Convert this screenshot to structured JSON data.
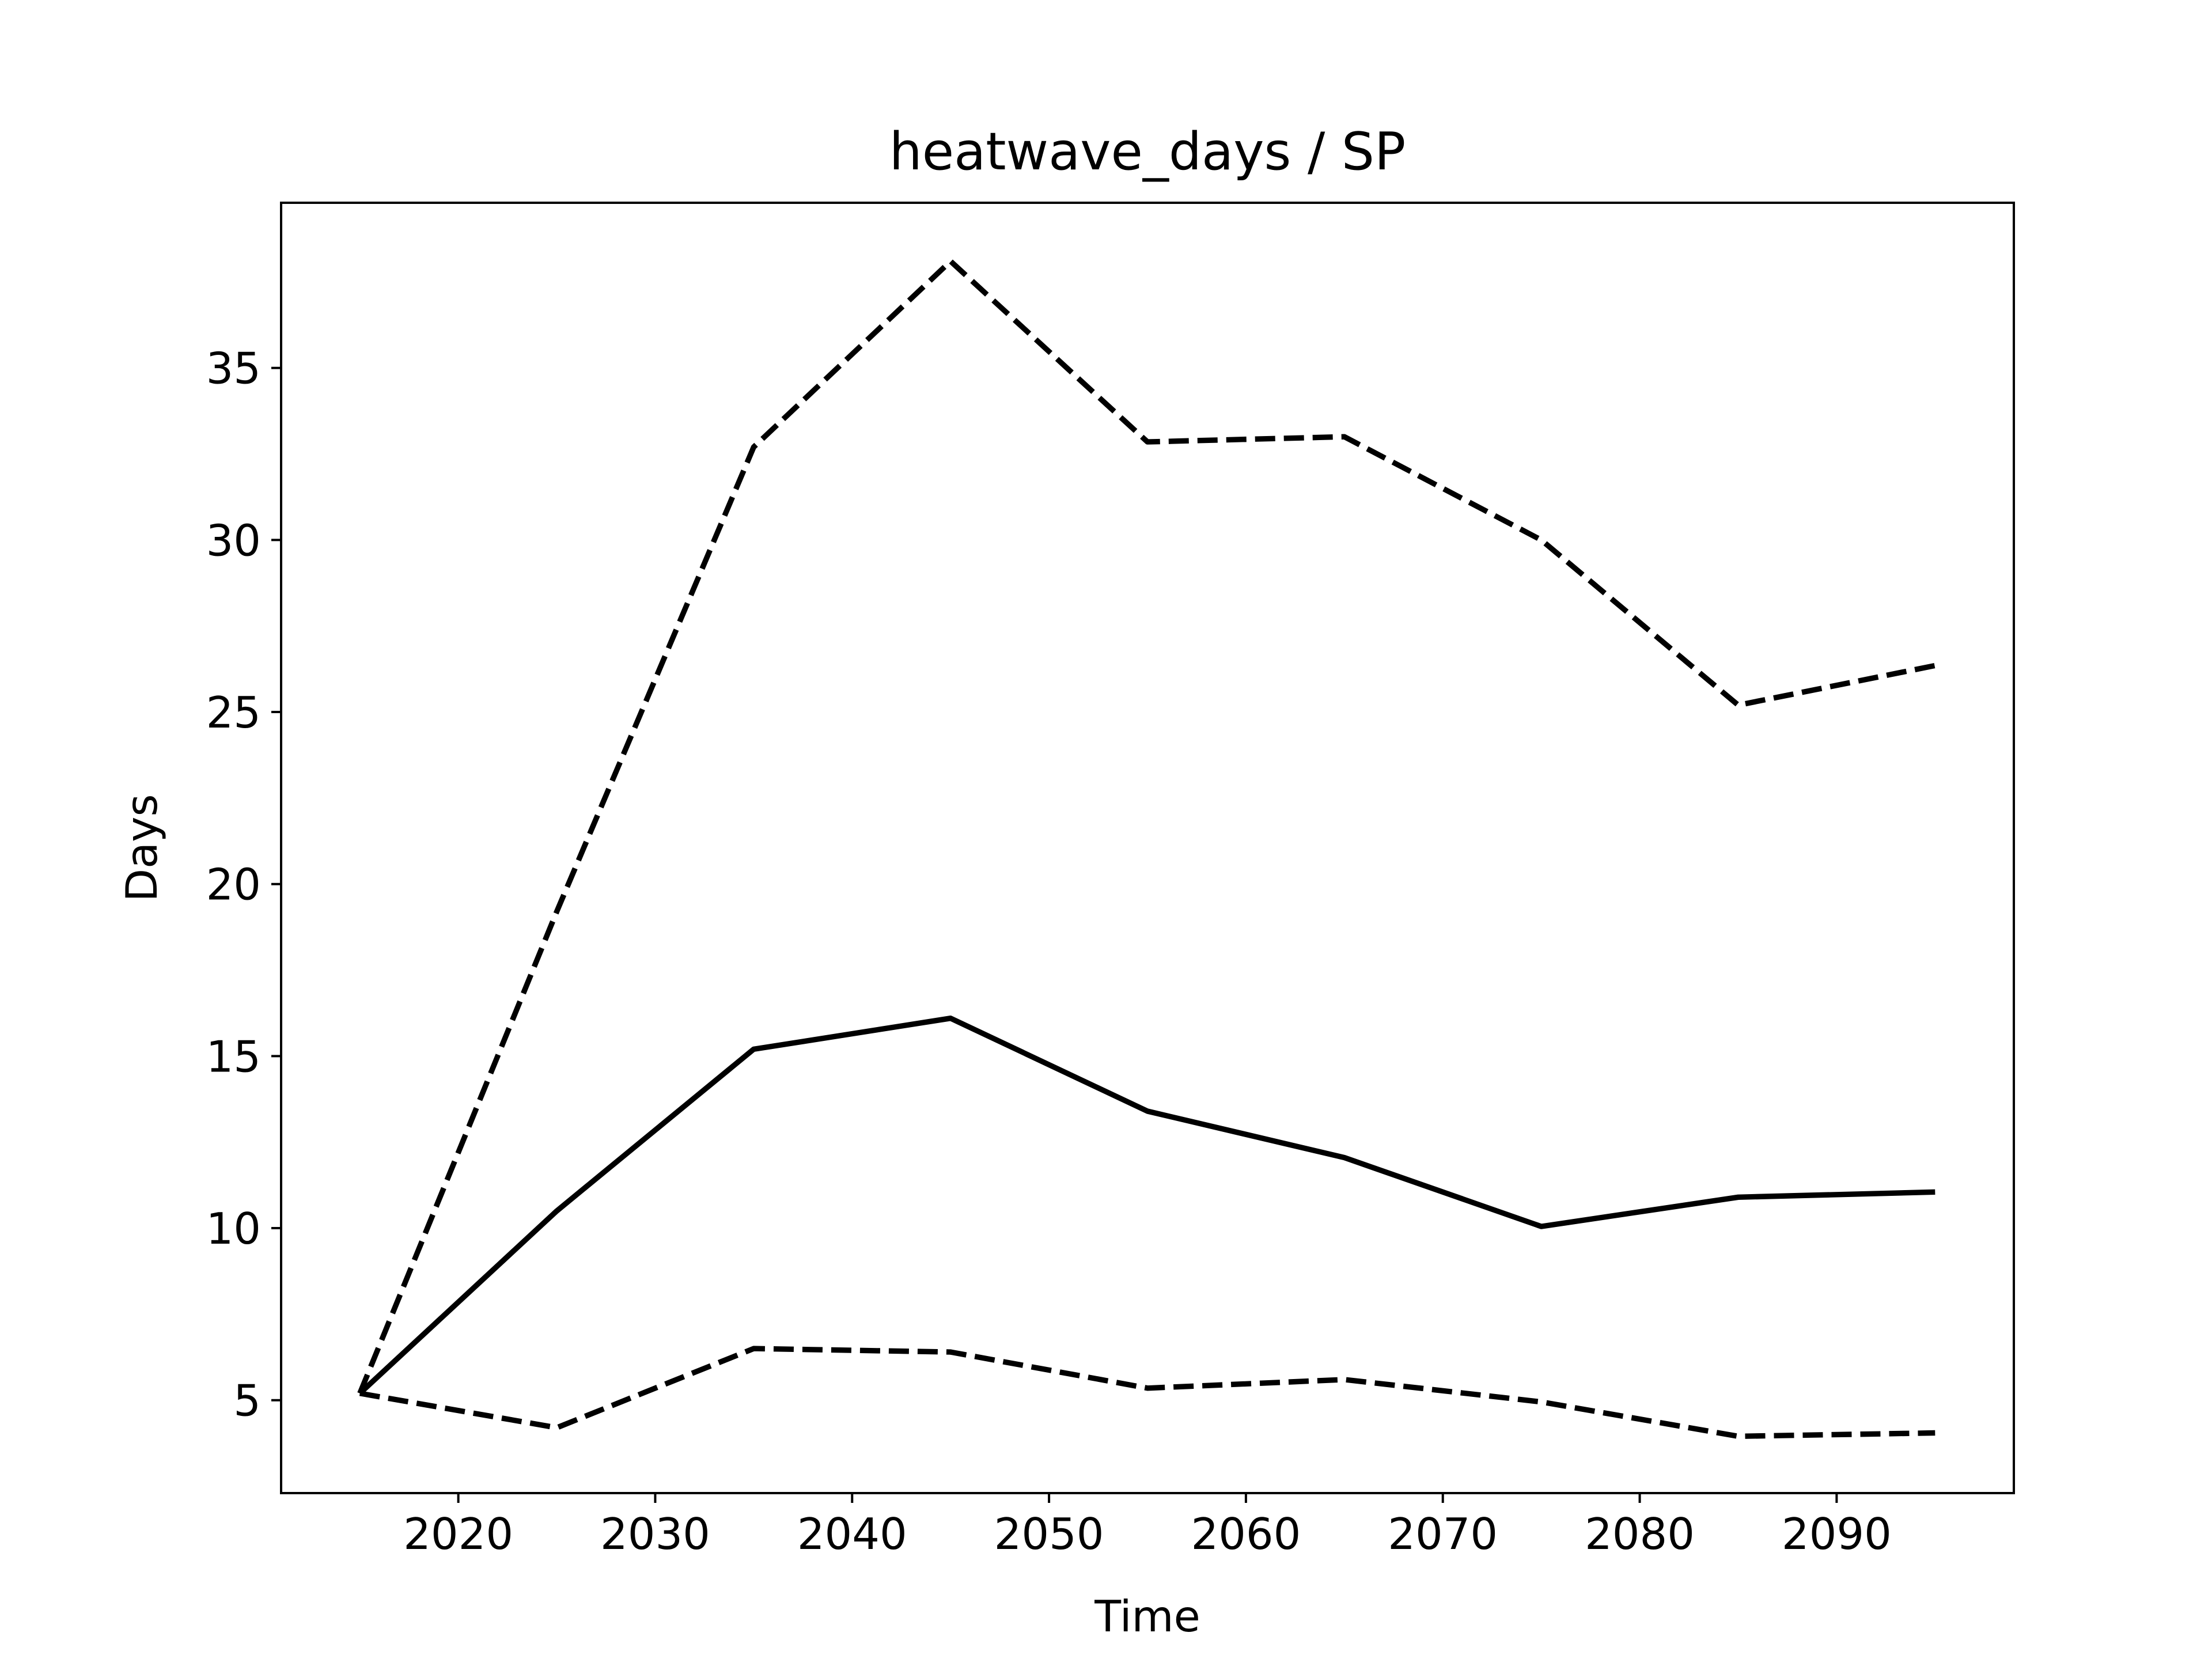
{
  "chart_data": {
    "type": "line",
    "title": "heatwave_days / SP",
    "xlabel": "Time",
    "ylabel": "Days",
    "x": [
      2015,
      2025,
      2035,
      2045,
      2055,
      2065,
      2075,
      2085,
      2095
    ],
    "series": [
      {
        "style": "solid",
        "values": [
          5.2,
          10.5,
          15.2,
          16.1,
          13.4,
          12.05,
          10.05,
          10.9,
          11.05
        ]
      },
      {
        "style": "dashed",
        "values": [
          5.2,
          19.2,
          32.7,
          38.1,
          32.85,
          33.0,
          30.0,
          25.2,
          26.35
        ]
      },
      {
        "style": "dashed",
        "values": [
          5.2,
          4.2,
          6.5,
          6.4,
          5.35,
          5.6,
          4.95,
          3.95,
          4.05
        ]
      }
    ],
    "xticks": [
      "2020",
      "2030",
      "2040",
      "2050",
      "2060",
      "2070",
      "2080",
      "2090"
    ],
    "yticks": [
      "5",
      "10",
      "15",
      "20",
      "25",
      "30",
      "35"
    ],
    "xlim": [
      2011.0,
      2099.0
    ],
    "ylim": [
      2.3,
      39.8
    ],
    "grid": false,
    "legend": "none",
    "line_color": "#000000"
  }
}
